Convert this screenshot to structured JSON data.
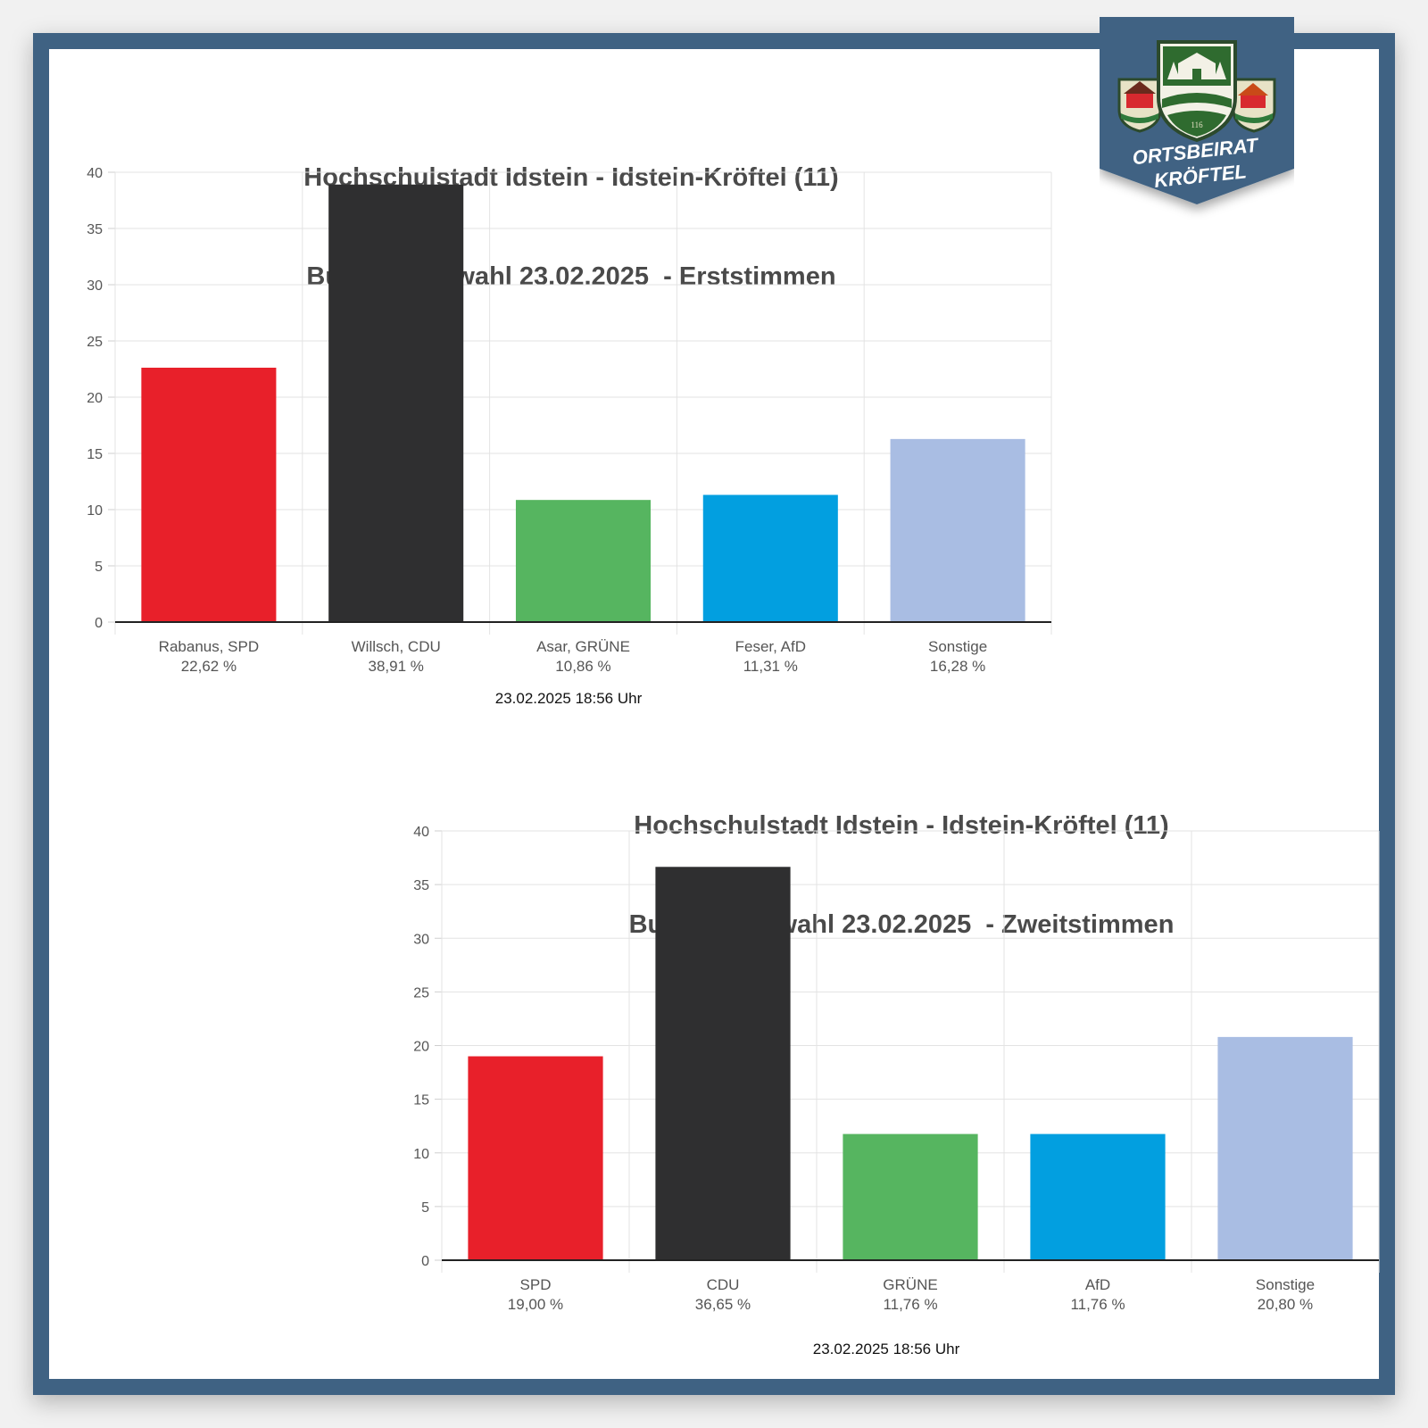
{
  "badge": {
    "line1": "ORTSBEIRAT",
    "line2": "KRÖFTEL",
    "crest_year": "116"
  },
  "chart_data": [
    {
      "type": "bar",
      "title": "Hochschulstadt Idstein - Idstein-Kröftel (11)",
      "subtitle": "Bundestagswahl 23.02.2025  - Erststimmen",
      "categories": [
        "Rabanus, SPD",
        "Willsch, CDU",
        "Asar, GRÜNE",
        "Feser, AfD",
        "Sonstige"
      ],
      "value_labels": [
        "22,62 %",
        "38,91 %",
        "10,86 %",
        "11,31 %",
        "16,28 %"
      ],
      "values": [
        22.62,
        38.91,
        10.86,
        11.31,
        16.28
      ],
      "colors": [
        "#e8202a",
        "#2f2f30",
        "#56b560",
        "#029fe0",
        "#a9bde3"
      ],
      "ylim": [
        0,
        40
      ],
      "yticks": [
        "0",
        "5",
        "10",
        "15",
        "20",
        "25",
        "30",
        "35",
        "40"
      ],
      "grid": true,
      "timestamp": "23.02.2025 18:56 Uhr"
    },
    {
      "type": "bar",
      "title": "Hochschulstadt Idstein - Idstein-Kröftel (11)",
      "subtitle": "Bundestagswahl 23.02.2025  - Zweitstimmen",
      "categories": [
        "SPD",
        "CDU",
        "GRÜNE",
        "AfD",
        "Sonstige"
      ],
      "value_labels": [
        "19,00 %",
        "36,65 %",
        "11,76 %",
        "11,76 %",
        "20,80 %"
      ],
      "values": [
        19.0,
        36.65,
        11.76,
        11.76,
        20.8
      ],
      "colors": [
        "#e8202a",
        "#2f2f30",
        "#56b560",
        "#029fe0",
        "#a9bde3"
      ],
      "ylim": [
        0,
        40
      ],
      "yticks": [
        "0",
        "5",
        "10",
        "15",
        "20",
        "25",
        "30",
        "35",
        "40"
      ],
      "grid": true,
      "timestamp": "23.02.2025 18:56 Uhr"
    }
  ]
}
